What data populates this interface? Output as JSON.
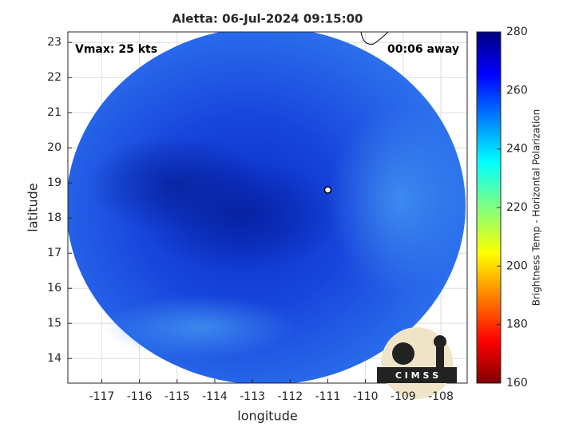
{
  "chart_data": {
    "type": "satellite-map",
    "title": "Aletta: 06-Jul-2024 09:15:00",
    "annotations": [
      "Vmax: 25 kts",
      "00:06 away"
    ],
    "xlabel": "longitude",
    "ylabel": "latitude",
    "xlim": [
      -117.9,
      -107.3
    ],
    "xticks": [
      -117,
      -116,
      -115,
      -114,
      -113,
      -112,
      -111,
      -110,
      -109,
      -108
    ],
    "ylim": [
      13.3,
      23.3
    ],
    "yticks": [
      14,
      15,
      16,
      17,
      18,
      19,
      20,
      21,
      22,
      23
    ],
    "grid": true,
    "storm_center": [
      -111,
      18.8
    ],
    "colorbar": {
      "label": "Brightness Temp - Horizontal Polarization",
      "lim": [
        160,
        280
      ],
      "ticks": [
        160,
        180,
        200,
        220,
        240,
        260,
        280
      ],
      "colormap": "jet"
    },
    "logo_text": "C I M S S"
  }
}
